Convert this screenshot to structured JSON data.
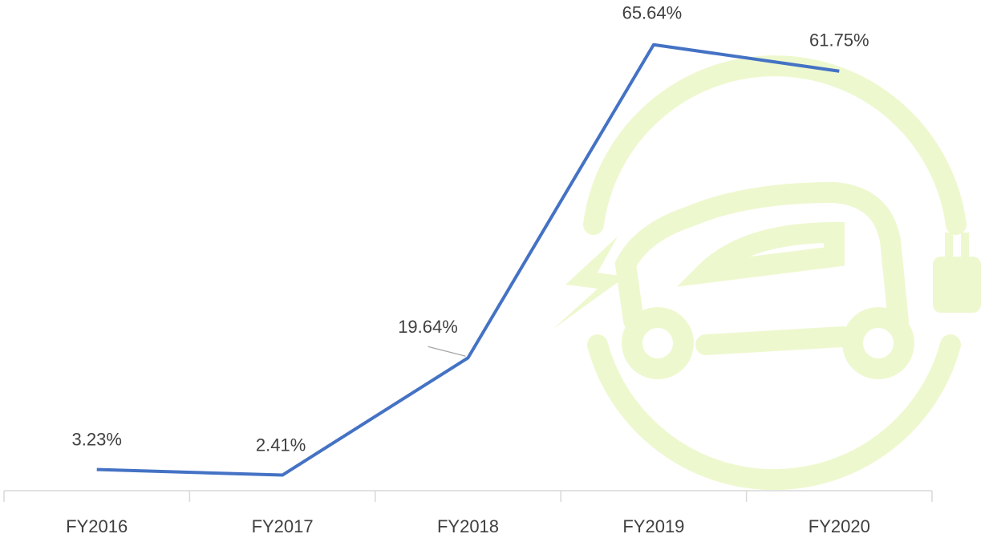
{
  "chart_data": {
    "type": "line",
    "categories": [
      "FY2016",
      "FY2017",
      "FY2018",
      "FY2019",
      "FY2020"
    ],
    "series": [
      {
        "color": "#4472c4",
        "values": [
          3.23,
          2.41,
          19.64,
          65.64,
          61.75
        ],
        "value_labels": [
          "3.23%",
          "2.41%",
          "19.64%",
          "65.64%",
          "61.75%"
        ]
      }
    ]
  }
}
